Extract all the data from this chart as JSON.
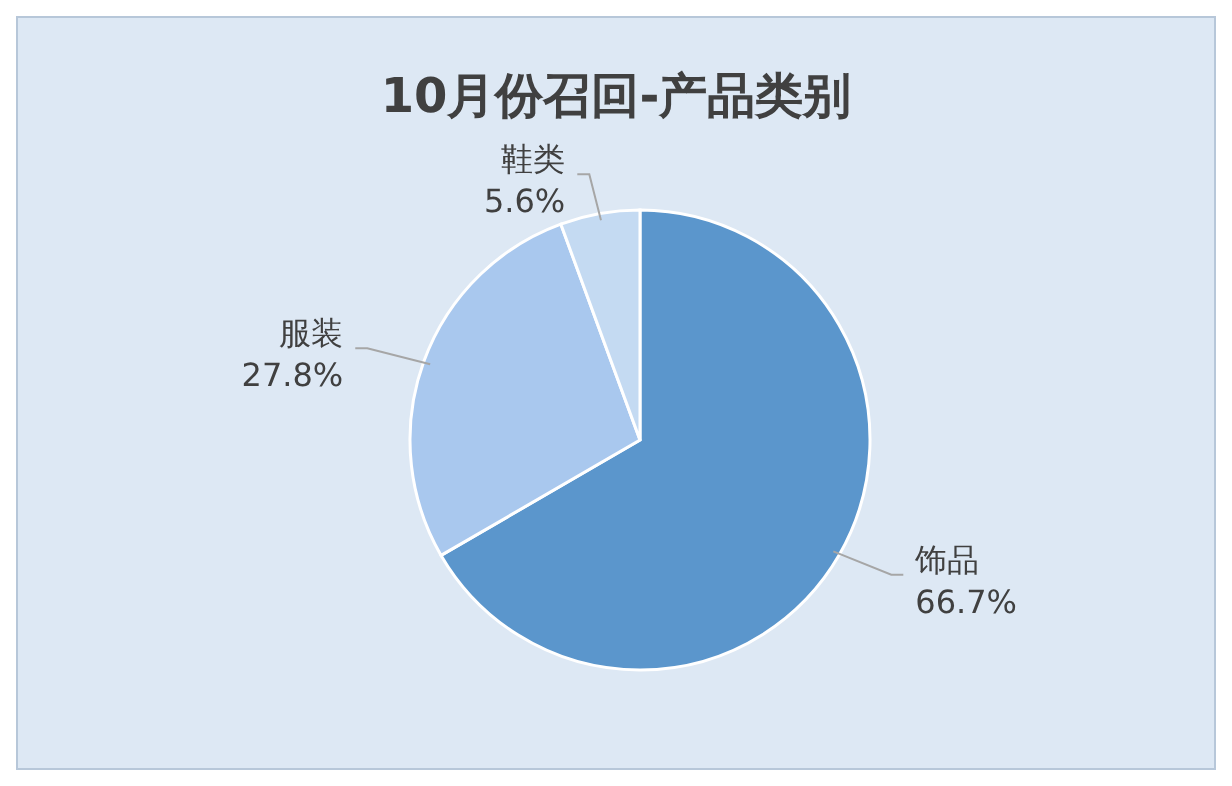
{
  "chart_data": {
    "type": "pie",
    "title": "10月份召回-产品类别",
    "categories": [
      "饰品",
      "服装",
      "鞋类"
    ],
    "values": [
      66.7,
      27.8,
      5.6
    ],
    "value_labels": [
      "66.7%",
      "27.8%",
      "5.6%"
    ],
    "colors": [
      "#5b96cc",
      "#a9c8ee",
      "#c4daf2"
    ]
  }
}
